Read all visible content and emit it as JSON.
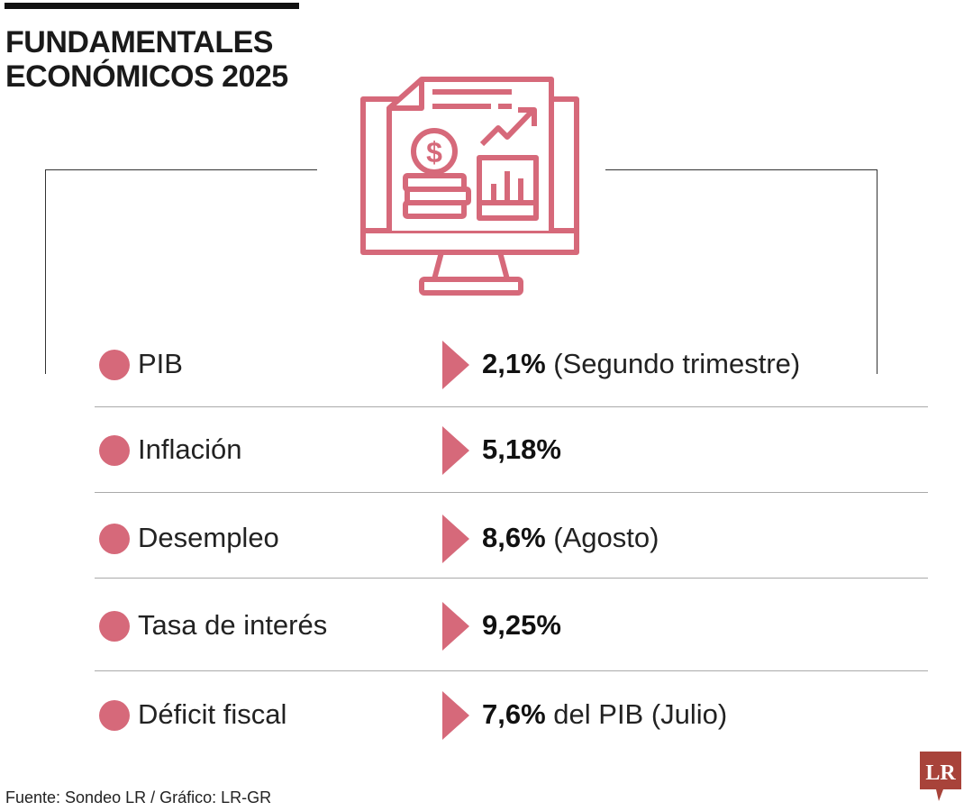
{
  "title": [
    "FUNDAMENTALES",
    "ECONÓMICOS 2025"
  ],
  "colors": {
    "accent": "#d6697a",
    "logo": "#a8433a"
  },
  "rows": [
    {
      "label": "PIB",
      "value": "2,1%",
      "note": " (Segundo trimestre)"
    },
    {
      "label": "Inflación",
      "value": "5,18%",
      "note": ""
    },
    {
      "label": "Desempleo",
      "value": "8,6%",
      "note": " (Agosto)"
    },
    {
      "label": "Tasa de interés",
      "value": "9,25%",
      "note": ""
    },
    {
      "label": "Déficit fiscal",
      "value": "7,6%",
      "note": " del PIB (Julio)"
    }
  ],
  "source": "Fuente: Sondeo LR / Gráfico: LR-GR",
  "logo_text": "LR"
}
